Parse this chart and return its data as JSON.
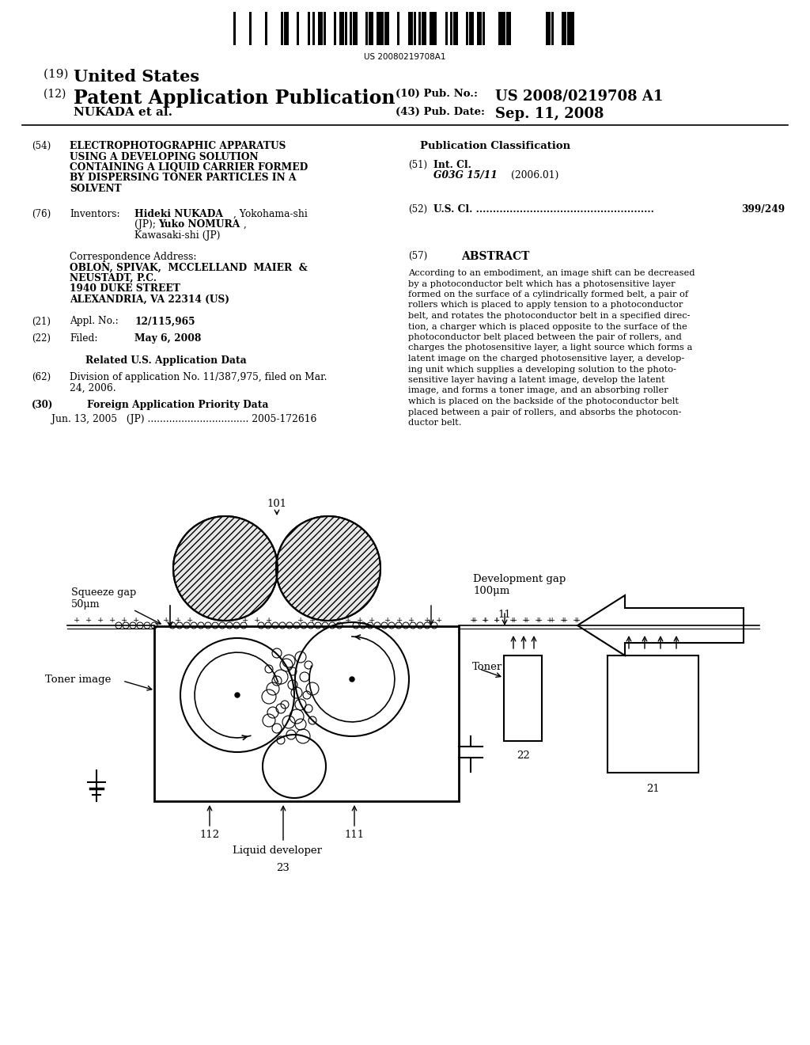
{
  "bg_color": "#ffffff",
  "barcode_text": "US 20080219708A1",
  "title_19": "(19) United States",
  "title_12_prefix": "(12) ",
  "title_12_main": "Patent Application Publication",
  "pub_no_label": "(10) Pub. No.:",
  "pub_no": "US 2008/0219708 A1",
  "pub_date_label": "(43) Pub. Date:",
  "pub_date": "Sep. 11, 2008",
  "nukada_label": "NUKADA et al.",
  "section54_num": "(54)",
  "section54_title_lines": [
    "ELECTROPHOTOGRAPHIC APPARATUS",
    "USING A DEVELOPING SOLUTION",
    "CONTAINING A LIQUID CARRIER FORMED",
    "BY DISPERSING TONER PARTICLES IN A",
    "SOLVENT"
  ],
  "section76_num": "(76)",
  "section76_label": "Inventors:",
  "section76_name1": "Hideki NUKADA",
  "section76_name1_rest": ", Yokohama-shi",
  "section76_line2": "(JP); ",
  "section76_name2": "Yuko NOMURA",
  "section76_name2_rest": ",",
  "section76_line3": "Kawasaki-shi (JP)",
  "corr_label": "Correspondence Address:",
  "corr_line1": "OBLON, SPIVAK,  MCCLELLAND  MAIER  &",
  "corr_line2": "NEUSTADT, P.C.",
  "corr_line3": "1940 DUKE STREET",
  "corr_line4": "ALEXANDRIA, VA 22314 (US)",
  "section21_num": "(21)",
  "section21_label": "Appl. No.:",
  "section21_val": "12/115,965",
  "section22_num": "(22)",
  "section22_label": "Filed:",
  "section22_val": "May 6, 2008",
  "related_header": "Related U.S. Application Data",
  "section62_num": "(62)",
  "section62_line1": "Division of application No. 11/387,975, filed on Mar.",
  "section62_line2": "24, 2006.",
  "section30_num": "(30)",
  "section30_label": "Foreign Application Priority Data",
  "section30_text": "Jun. 13, 2005   (JP) ................................. 2005-172616",
  "pub_class_header": "Publication Classification",
  "section51_num": "(51)",
  "section51_label": "Int. Cl.",
  "section51_class": "G03G 15/11",
  "section51_year": "(2006.01)",
  "section52_num": "(52)",
  "section52_label": "U.S. Cl. .....................................................",
  "section52_val": "399/249",
  "section57_num": "(57)",
  "section57_header": "ABSTRACT",
  "abstract_lines": [
    "According to an embodiment, an image shift can be decreased",
    "by a photoconductor belt which has a photosensitive layer",
    "formed on the surface of a cylindrically formed belt, a pair of",
    "rollers which is placed to apply tension to a photoconductor",
    "belt, and rotates the photoconductor belt in a specified direc-",
    "tion, a charger which is placed opposite to the surface of the",
    "photoconductor belt placed between the pair of rollers, and",
    "charges the photosensitive layer, a light source which forms a",
    "latent image on the charged photosensitive layer, a develop-",
    "ing unit which supplies a developing solution to the photo-",
    "sensitive layer having a latent image, develop the latent",
    "image, and forms a toner image, and an absorbing roller",
    "which is placed on the backside of the photoconductor belt",
    "placed between a pair of rollers, and absorbs the photocon-",
    "ductor belt."
  ],
  "diag_squeeze_label": "Squeeze gap",
  "diag_squeeze_val": "50μm",
  "diag_devgap_label": "Development gap",
  "diag_devgap_val": "100μm",
  "diag_toner_image": "Toner image",
  "diag_toner": "Toner",
  "diag_liq_dev": "Liquid developer",
  "diag_101": "101",
  "diag_11": "11",
  "diag_21": "21",
  "diag_22": "22",
  "diag_23": "23",
  "diag_111": "111",
  "diag_112": "112"
}
